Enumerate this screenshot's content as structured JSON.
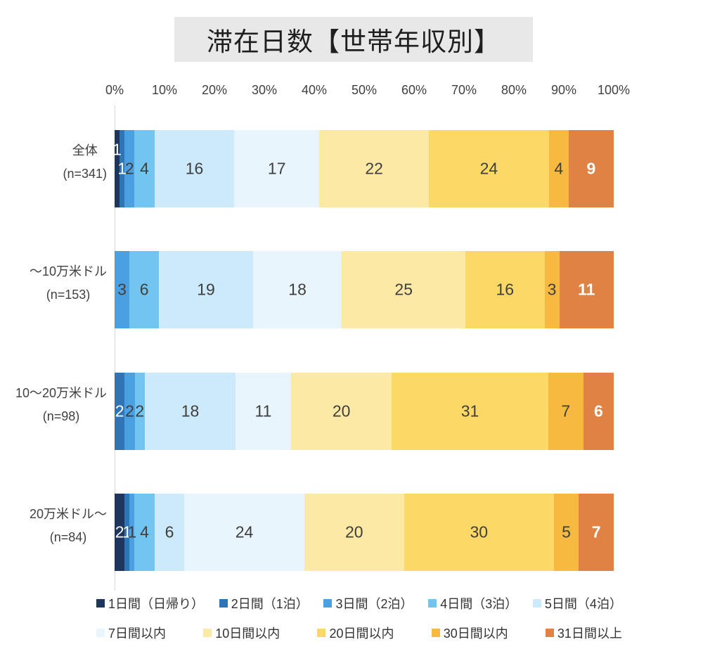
{
  "chart_data": {
    "type": "bar",
    "variant": "100-percent-stacked-horizontal",
    "title": "滞在日数【世帯年収別】",
    "x_axis": {
      "ticks": [
        "0%",
        "10%",
        "20%",
        "30%",
        "40%",
        "50%",
        "60%",
        "70%",
        "80%",
        "90%",
        "100%"
      ],
      "min": 0,
      "max": 100,
      "grid": false
    },
    "legend_position": "bottom",
    "segments": [
      {
        "label": "1日間（日帰り）",
        "color": "#1e355e"
      },
      {
        "label": "2日間（1泊）",
        "color": "#2e75b6"
      },
      {
        "label": "3日間（2泊）",
        "color": "#4aa0e0"
      },
      {
        "label": "4日間（3泊）",
        "color": "#73c5f1"
      },
      {
        "label": "5日間（4泊）",
        "color": "#cdeafa"
      },
      {
        "label": "7日間以内",
        "color": "#e9f5fc"
      },
      {
        "label": "10日間以内",
        "color": "#fce9a5"
      },
      {
        "label": "20日間以内",
        "color": "#fcd866"
      },
      {
        "label": "30日間以内",
        "color": "#f7b93f"
      },
      {
        "label": "31日間以上",
        "color": "#df8244"
      }
    ],
    "rows": [
      {
        "label": "全体",
        "n": "(n=341)",
        "values": [
          1,
          1,
          2,
          4,
          16,
          17,
          22,
          24,
          4,
          9
        ]
      },
      {
        "label": "～10万米ドル",
        "n": "(n=153)",
        "values": [
          0,
          0,
          3,
          6,
          19,
          18,
          25,
          16,
          3,
          11
        ]
      },
      {
        "label": "10～20万米ドル",
        "n": "(n=98)",
        "values": [
          0,
          2,
          2,
          2,
          18,
          11,
          20,
          31,
          7,
          6
        ]
      },
      {
        "label": "20万米ドル～",
        "n": "(n=84)",
        "values": [
          2,
          1,
          1,
          4,
          6,
          24,
          20,
          30,
          5,
          7
        ]
      }
    ]
  }
}
